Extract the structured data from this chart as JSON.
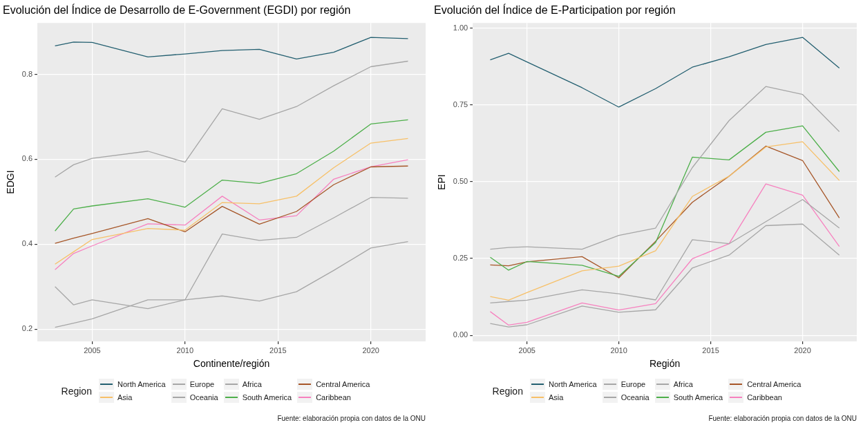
{
  "chart_data": [
    {
      "type": "line",
      "title": "Evolución del Índice de Desarrollo de E-Government (EGDI) por región",
      "xlabel": "Continente/región",
      "ylabel": "EDGI",
      "legend_title": "Region",
      "legend": "bottom",
      "grid": true,
      "marker": "none",
      "line_style": "solid",
      "x": [
        2003,
        2004,
        2005,
        2008,
        2010,
        2012,
        2014,
        2016,
        2018,
        2020,
        2022
      ],
      "xlim": [
        2002.05,
        2022.95
      ],
      "xticks": [
        2005,
        2010,
        2015,
        2020
      ],
      "ylim": [
        0.171,
        0.921
      ],
      "yticks": [
        0.2,
        0.4,
        0.6,
        0.8
      ],
      "series": [
        {
          "name": "North America",
          "color": "#235f70",
          "values": [
            0.867,
            0.876,
            0.875,
            0.841,
            0.848,
            0.856,
            0.859,
            0.836,
            0.852,
            0.887,
            0.884
          ]
        },
        {
          "name": "Asia",
          "color": "#f7c068",
          "values": [
            0.353,
            0.382,
            0.411,
            0.437,
            0.433,
            0.498,
            0.495,
            0.513,
            0.58,
            0.638,
            0.649
          ]
        },
        {
          "name": "Europe",
          "color": "#a6a6a6",
          "values": [
            0.558,
            0.587,
            0.602,
            0.619,
            0.593,
            0.719,
            0.694,
            0.724,
            0.773,
            0.818,
            0.831
          ]
        },
        {
          "name": "Oceania",
          "color": "#a6a6a6",
          "values": [
            0.3,
            0.257,
            0.269,
            0.248,
            0.269,
            0.424,
            0.409,
            0.416,
            0.462,
            0.51,
            0.508
          ]
        },
        {
          "name": "Africa",
          "color": "#a6a6a6",
          "values": [
            0.204,
            0.214,
            0.224,
            0.269,
            0.269,
            0.278,
            0.266,
            0.288,
            0.338,
            0.391,
            0.406
          ]
        },
        {
          "name": "South America",
          "color": "#4daf4a",
          "values": [
            0.431,
            0.483,
            0.49,
            0.507,
            0.487,
            0.551,
            0.543,
            0.566,
            0.619,
            0.683,
            0.693
          ]
        },
        {
          "name": "Central America",
          "color": "#a65628",
          "values": [
            0.402,
            0.414,
            0.425,
            0.46,
            0.429,
            0.489,
            0.447,
            0.477,
            0.54,
            0.582,
            0.584
          ]
        },
        {
          "name": "Caribbean",
          "color": "#f781bf",
          "values": [
            0.34,
            0.378,
            0.396,
            0.448,
            0.445,
            0.513,
            0.457,
            0.467,
            0.553,
            0.582,
            0.599
          ]
        }
      ],
      "annotations": [
        "Fuente: elaboración propia con datos de la ONU"
      ]
    },
    {
      "type": "line",
      "title": "Evolución del Índice de E-Participation por región",
      "xlabel": "Región",
      "ylabel": "EPI",
      "legend_title": "Region",
      "legend": "bottom",
      "grid": true,
      "marker": "none",
      "line_style": "solid",
      "x": [
        2003,
        2004,
        2005,
        2008,
        2010,
        2012,
        2014,
        2016,
        2018,
        2020,
        2022
      ],
      "xlim": [
        2002.05,
        2022.95
      ],
      "xticks": [
        2005,
        2010,
        2015,
        2020
      ],
      "ylim": [
        -0.02,
        1.017
      ],
      "yticks": [
        {
          "value": 0,
          "label": "0.00"
        },
        {
          "value": 0.25,
          "label": "0.25"
        },
        {
          "value": 0.5,
          "label": "0.50"
        },
        {
          "value": 0.75,
          "label": "0.75"
        },
        {
          "value": 1,
          "label": "1.00"
        }
      ],
      "series": [
        {
          "name": "North America",
          "color": "#235f70",
          "values": [
            0.897,
            0.918,
            0.89,
            0.806,
            0.743,
            0.803,
            0.873,
            0.907,
            0.947,
            0.97,
            0.87
          ]
        },
        {
          "name": "Asia",
          "color": "#f7c068",
          "values": [
            0.126,
            0.114,
            0.139,
            0.21,
            0.225,
            0.275,
            0.452,
            0.518,
            0.613,
            0.63,
            0.504
          ]
        },
        {
          "name": "Europe",
          "color": "#a6a6a6",
          "values": [
            0.28,
            0.286,
            0.288,
            0.28,
            0.325,
            0.349,
            0.546,
            0.699,
            0.81,
            0.784,
            0.663
          ]
        },
        {
          "name": "Oceania",
          "color": "#a6a6a6",
          "values": [
            0.105,
            0.11,
            0.114,
            0.148,
            0.135,
            0.115,
            0.311,
            0.298,
            0.37,
            0.442,
            0.349
          ]
        },
        {
          "name": "Africa",
          "color": "#a6a6a6",
          "values": [
            0.038,
            0.027,
            0.034,
            0.095,
            0.075,
            0.083,
            0.219,
            0.261,
            0.357,
            0.362,
            0.261
          ]
        },
        {
          "name": "South America",
          "color": "#4daf4a",
          "values": [
            0.254,
            0.212,
            0.24,
            0.228,
            0.192,
            0.302,
            0.58,
            0.571,
            0.661,
            0.682,
            0.533
          ]
        },
        {
          "name": "Central America",
          "color": "#a65628",
          "values": [
            0.229,
            0.226,
            0.239,
            0.256,
            0.187,
            0.306,
            0.433,
            0.518,
            0.616,
            0.569,
            0.382
          ]
        },
        {
          "name": "Caribbean",
          "color": "#f781bf",
          "values": [
            0.077,
            0.033,
            0.042,
            0.105,
            0.082,
            0.103,
            0.249,
            0.298,
            0.493,
            0.456,
            0.289
          ]
        }
      ],
      "annotations": [
        "Fuente: elaboración propia con datos de la ONU"
      ]
    }
  ]
}
